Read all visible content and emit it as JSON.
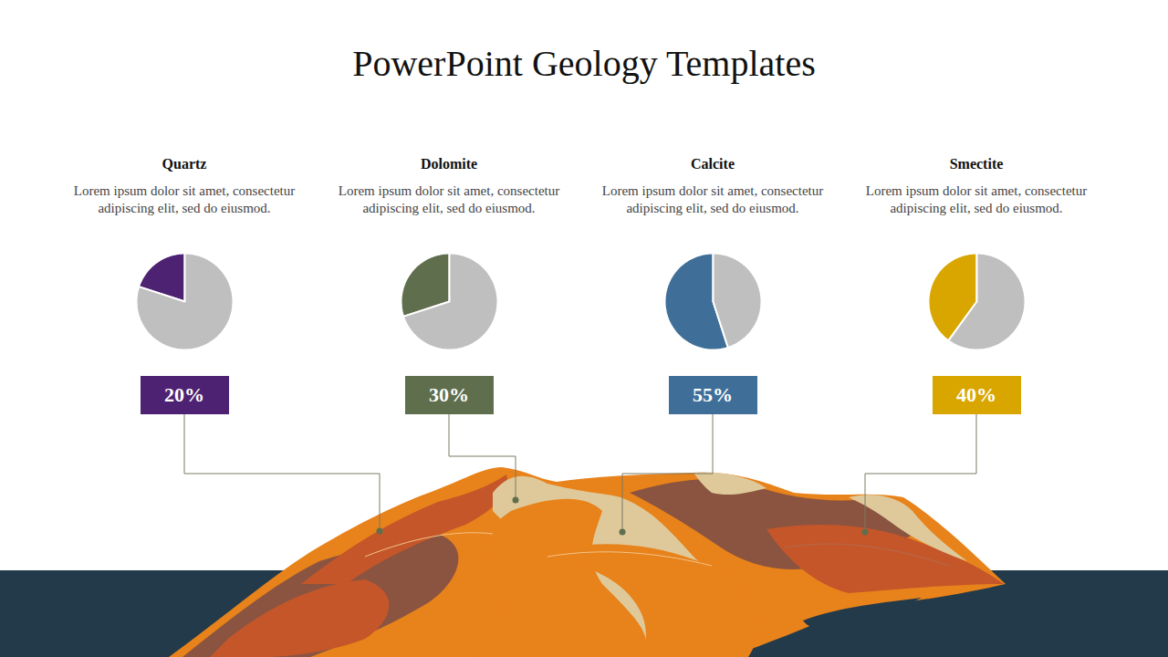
{
  "title": "PowerPoint Geology Templates",
  "chart_data": [
    {
      "type": "pie",
      "title": "Quartz",
      "subtitle": "Lorem ipsum dolor sit amet, consectetur adipiscing elit, sed do eiusmod.",
      "values": [
        20,
        80
      ],
      "colors": [
        "#4e2272",
        "#bfbfbf"
      ],
      "value_labels": [
        "20%",
        null
      ]
    },
    {
      "type": "pie",
      "title": "Dolomite",
      "subtitle": "Lorem ipsum dolor sit amet, consectetur adipiscing elit, sed do eiusmod.",
      "values": [
        30,
        70
      ],
      "colors": [
        "#5f6e4c",
        "#bfbfbf"
      ],
      "value_labels": [
        "30%",
        null
      ]
    },
    {
      "type": "pie",
      "title": "Calcite",
      "subtitle": "Lorem ipsum dolor sit amet, consectetur adipiscing elit, sed do eiusmod.",
      "values": [
        55,
        45
      ],
      "colors": [
        "#3f6f99",
        "#bfbfbf"
      ],
      "value_labels": [
        "55%",
        null
      ]
    },
    {
      "type": "pie",
      "title": "Smectite",
      "subtitle": "Lorem ipsum dolor sit amet, consectetur adipiscing elit, sed do eiusmod.",
      "values": [
        40,
        60
      ],
      "colors": [
        "#d9a600",
        "#bfbfbf"
      ],
      "value_labels": [
        "40%",
        null
      ]
    }
  ]
}
